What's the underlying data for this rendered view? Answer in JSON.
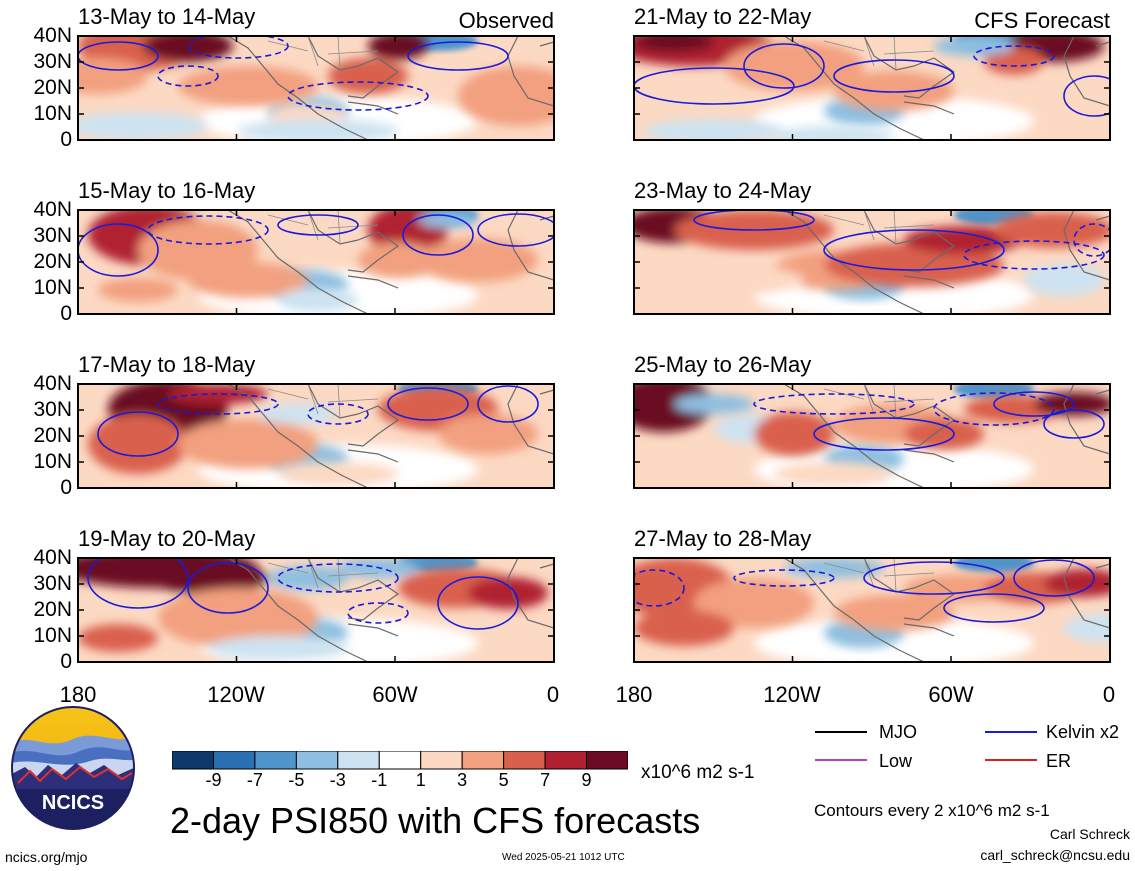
{
  "panels": [
    {
      "title": "13-May to 14-May",
      "tag": "Observed"
    },
    {
      "title": "21-May to 22-May",
      "tag": "CFS Forecast"
    },
    {
      "title": "15-May to 16-May",
      "tag": ""
    },
    {
      "title": "23-May to 24-May",
      "tag": ""
    },
    {
      "title": "17-May to 18-May",
      "tag": ""
    },
    {
      "title": "25-May to 26-May",
      "tag": ""
    },
    {
      "title": "19-May to 20-May",
      "tag": ""
    },
    {
      "title": "27-May to 28-May",
      "tag": ""
    }
  ],
  "y_ticks": [
    "40N",
    "30N",
    "20N",
    "10N",
    "0"
  ],
  "x_ticks": [
    "180",
    "120W",
    "60W",
    "0"
  ],
  "colorbar": {
    "labels": [
      "-9",
      "-7",
      "-5",
      "-3",
      "-1",
      "1",
      "3",
      "5",
      "7",
      "9"
    ],
    "colors": [
      "#0d3a6b",
      "#2b6fb3",
      "#4f95cc",
      "#8fbfe0",
      "#cde3f1",
      "#ffffff",
      "#fcd9c3",
      "#f2a07f",
      "#d9604d",
      "#b02030",
      "#6b0a20"
    ],
    "units": "x10^6 m2 s-1"
  },
  "title": "2-day PSI850 with CFS forecasts",
  "legend": [
    {
      "label": "MJO",
      "color": "#000000"
    },
    {
      "label": "Kelvin x2",
      "color": "#1a1adb"
    },
    {
      "label": "Low",
      "color": "#b040d0"
    },
    {
      "label": "ER",
      "color": "#e02020"
    }
  ],
  "contour_note": "Contours every 2 x10^6 m2 s-1",
  "author": "Carl Schreck",
  "email": "carl_schreck@ncsu.edu",
  "website": "ncics.org/mjo",
  "timestamp": "Wed 2025-05-21 1012 UTC",
  "logo": {
    "text": "NCICS"
  }
}
